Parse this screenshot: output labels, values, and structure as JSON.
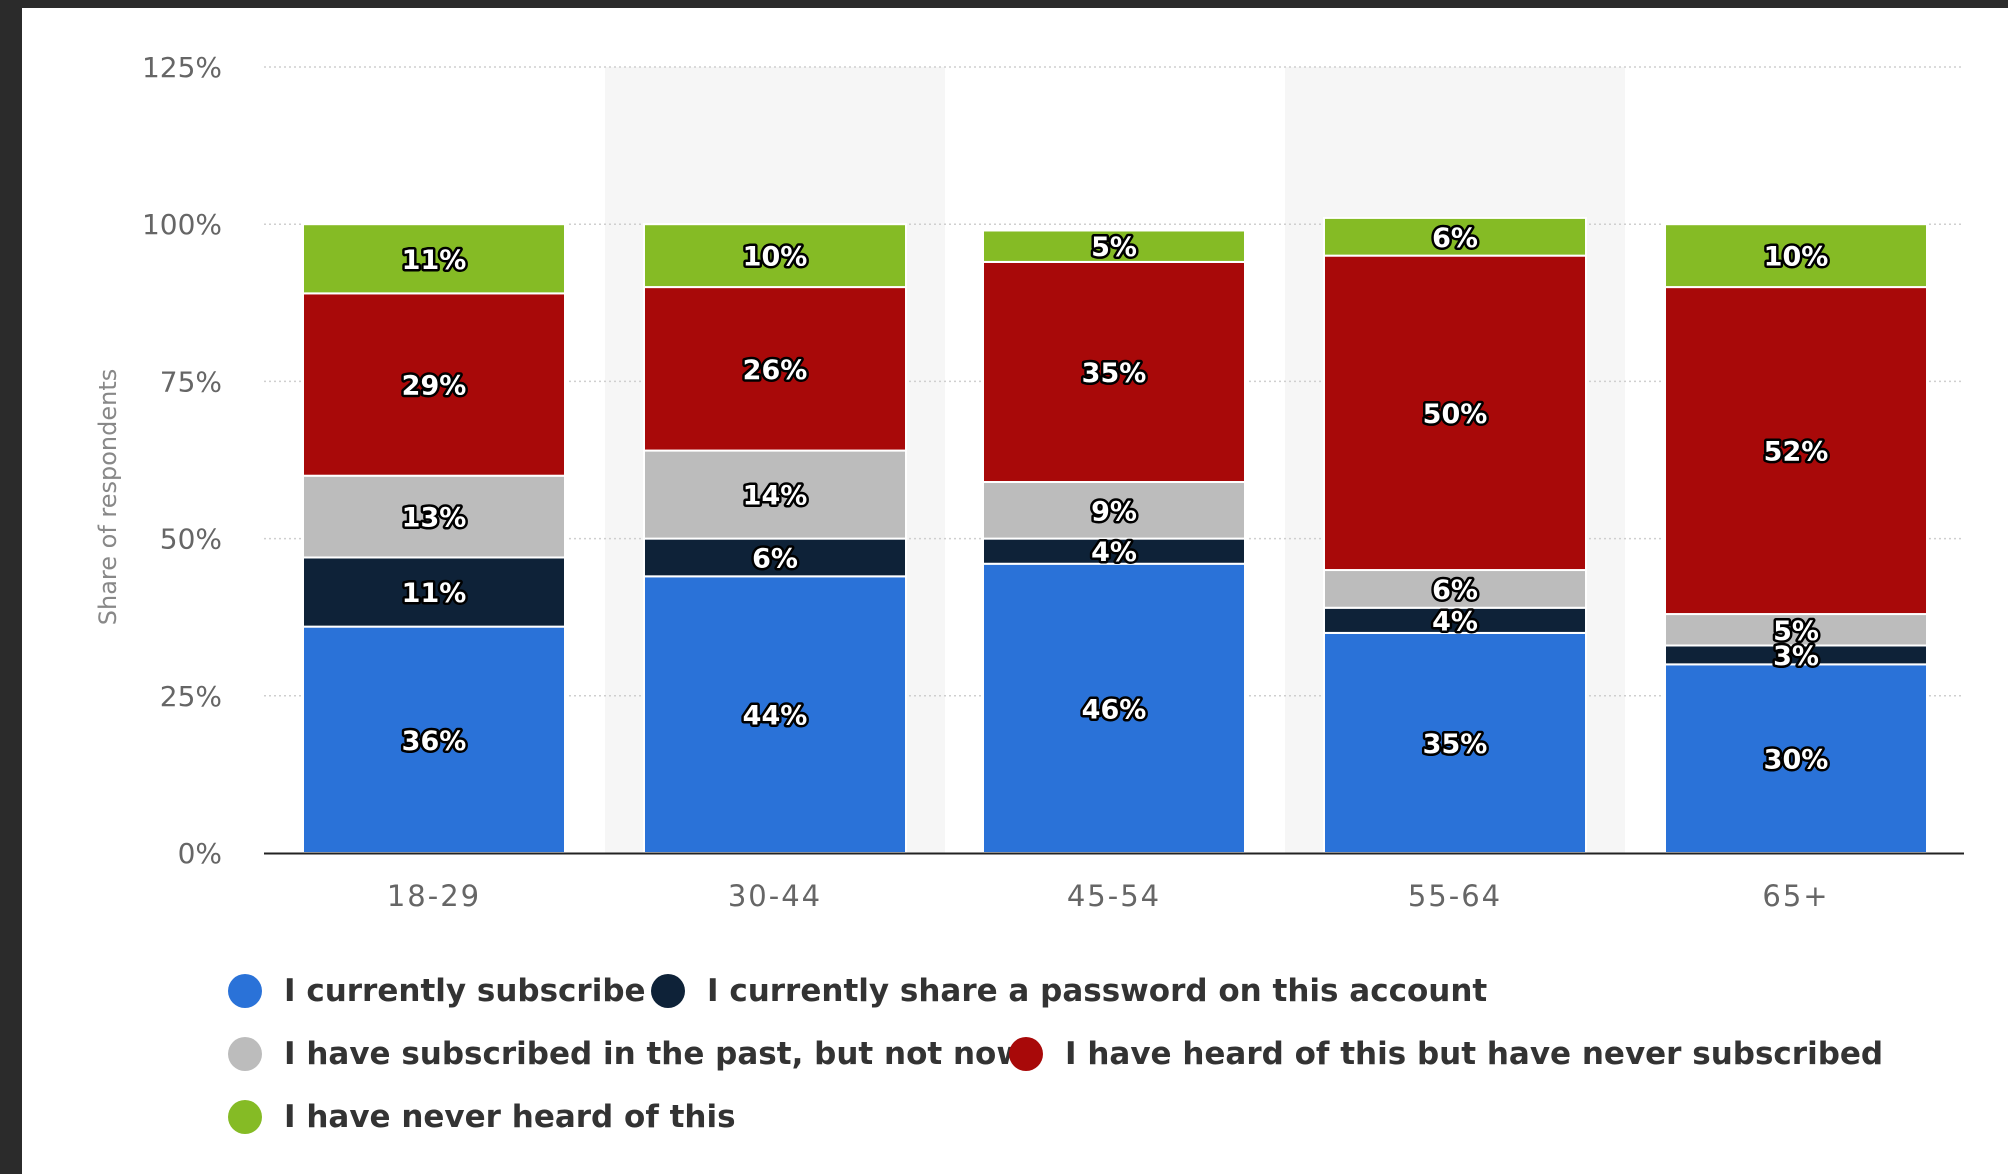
{
  "chart_data": {
    "type": "bar",
    "stacked": true,
    "categories": [
      "18-29",
      "30-44",
      "45-54",
      "55-64",
      "65+"
    ],
    "series": [
      {
        "name": "I currently subscribe",
        "color": "#2a72d8",
        "values": [
          36,
          44,
          46,
          35,
          30
        ],
        "labels": [
          "36%",
          "44%",
          "46%",
          "35%",
          "30%"
        ]
      },
      {
        "name": "I currently share a password on this account",
        "color": "#0e2238",
        "values": [
          11,
          6,
          4,
          4,
          3
        ],
        "labels": [
          "11%",
          "6%",
          "4%",
          "4%",
          "3%"
        ]
      },
      {
        "name": "I have subscribed in the past, but not now",
        "color": "#bcbcbc",
        "values": [
          13,
          14,
          9,
          6,
          5
        ],
        "labels": [
          "13%",
          "14%",
          "9%",
          "6%",
          "5%"
        ]
      },
      {
        "name": "I have heard of this but have never subscribed",
        "color": "#a80909",
        "values": [
          29,
          26,
          35,
          50,
          52
        ],
        "labels": [
          "29%",
          "26%",
          "35%",
          "50%",
          "52%"
        ]
      },
      {
        "name": "I have never heard of this",
        "color": "#85bb25",
        "values": [
          11,
          10,
          5,
          6,
          10
        ],
        "labels": [
          "11%",
          "10%",
          "5%",
          "6%",
          "10%"
        ]
      }
    ],
    "ylabel": "Share of respondents",
    "xlabel": "",
    "title": "",
    "ylim": [
      0,
      125
    ],
    "yticks": [
      0,
      25,
      50,
      75,
      100,
      125
    ],
    "ytick_labels": [
      "0%",
      "25%",
      "50%",
      "75%",
      "100%",
      "125%"
    ],
    "grid": true,
    "legend_position": "bottom"
  }
}
